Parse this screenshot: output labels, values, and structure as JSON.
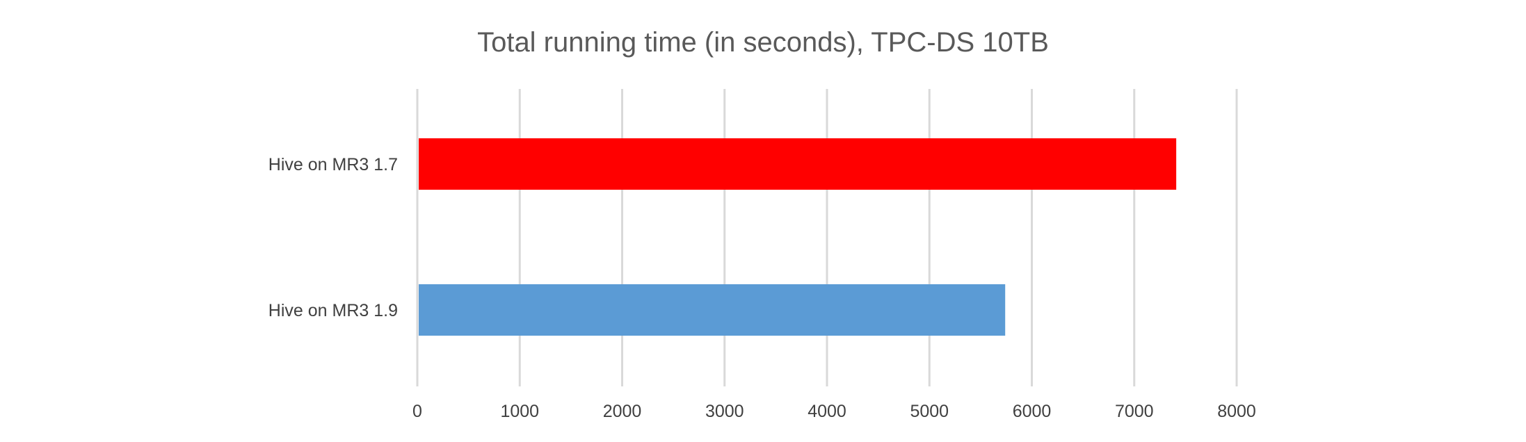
{
  "chart_data": {
    "type": "bar",
    "orientation": "horizontal",
    "title": "Total running time (in seconds), TPC-DS 10TB",
    "xlabel": "",
    "ylabel": "",
    "categories": [
      "Hive on MR3 1.7",
      "Hive on MR3 1.9"
    ],
    "values": [
      7410,
      5740
    ],
    "colors": [
      "#ff0000",
      "#5b9bd5"
    ],
    "xlim": [
      0,
      8000
    ],
    "xticks": [
      "0",
      "1000",
      "2000",
      "3000",
      "4000",
      "5000",
      "6000",
      "7000",
      "8000"
    ],
    "grid": true,
    "legend": "none"
  }
}
